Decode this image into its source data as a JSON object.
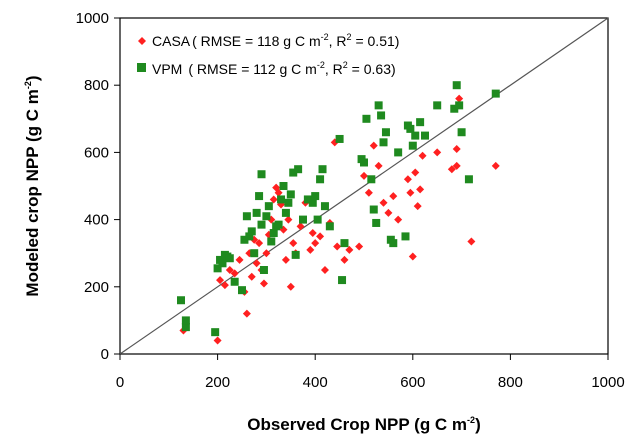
{
  "chart_data": {
    "type": "scatter",
    "xlabel": "Observed Crop NPP (g C m",
    "xlabel_sup": "-2",
    "xlabel_end": ")",
    "ylabel": "Modeled crop NPP (g C m",
    "ylabel_sup": "-2",
    "ylabel_end": ")",
    "xlim": [
      0,
      1000
    ],
    "ylim": [
      0,
      1000
    ],
    "xticks": [
      0,
      200,
      400,
      600,
      800,
      1000
    ],
    "yticks": [
      0,
      200,
      400,
      600,
      800,
      1000
    ],
    "grid": false,
    "legend_position": "top-left",
    "reference_line": {
      "from": [
        0,
        0
      ],
      "to": [
        1000,
        1000
      ],
      "color": "#555555"
    },
    "series": [
      {
        "name": "CASA",
        "legend_prefix": "CASA",
        "stat_rmse": "( RMSE = 118 g C m",
        "stat_mid": ", R",
        "stat_r2": " = 0.51)",
        "sup1": "-2",
        "sup2": "2",
        "marker": "diamond",
        "color": "#ff2020",
        "points": [
          [
            130,
            70
          ],
          [
            200,
            40
          ],
          [
            205,
            220
          ],
          [
            215,
            205
          ],
          [
            225,
            250
          ],
          [
            235,
            240
          ],
          [
            245,
            280
          ],
          [
            255,
            185
          ],
          [
            260,
            120
          ],
          [
            265,
            300
          ],
          [
            270,
            230
          ],
          [
            275,
            340
          ],
          [
            280,
            270
          ],
          [
            285,
            330
          ],
          [
            290,
            250
          ],
          [
            295,
            210
          ],
          [
            300,
            300
          ],
          [
            305,
            355
          ],
          [
            310,
            400
          ],
          [
            315,
            460
          ],
          [
            320,
            495
          ],
          [
            325,
            480
          ],
          [
            330,
            445
          ],
          [
            335,
            370
          ],
          [
            340,
            280
          ],
          [
            345,
            400
          ],
          [
            350,
            200
          ],
          [
            355,
            330
          ],
          [
            360,
            300
          ],
          [
            370,
            380
          ],
          [
            380,
            450
          ],
          [
            390,
            310
          ],
          [
            395,
            360
          ],
          [
            400,
            330
          ],
          [
            410,
            350
          ],
          [
            420,
            250
          ],
          [
            430,
            390
          ],
          [
            440,
            630
          ],
          [
            445,
            320
          ],
          [
            460,
            280
          ],
          [
            470,
            310
          ],
          [
            490,
            320
          ],
          [
            500,
            530
          ],
          [
            510,
            480
          ],
          [
            520,
            620
          ],
          [
            530,
            560
          ],
          [
            540,
            450
          ],
          [
            550,
            420
          ],
          [
            560,
            470
          ],
          [
            570,
            400
          ],
          [
            590,
            520
          ],
          [
            595,
            480
          ],
          [
            600,
            290
          ],
          [
            605,
            540
          ],
          [
            610,
            440
          ],
          [
            615,
            490
          ],
          [
            620,
            590
          ],
          [
            650,
            600
          ],
          [
            680,
            550
          ],
          [
            690,
            610
          ],
          [
            690,
            560
          ],
          [
            695,
            760
          ],
          [
            720,
            335
          ],
          [
            770,
            560
          ]
        ]
      },
      {
        "name": "VPM",
        "legend_prefix": "VPM",
        "stat_rmse": "( RMSE = 112 g C m",
        "stat_mid": ", R",
        "stat_r2": " = 0.63)",
        "sup1": "-2",
        "sup2": "2",
        "marker": "square",
        "color": "#1f8a1f",
        "points": [
          [
            125,
            160
          ],
          [
            135,
            80
          ],
          [
            135,
            100
          ],
          [
            195,
            65
          ],
          [
            200,
            255
          ],
          [
            205,
            280
          ],
          [
            210,
            270
          ],
          [
            215,
            295
          ],
          [
            220,
            290
          ],
          [
            225,
            285
          ],
          [
            235,
            215
          ],
          [
            250,
            190
          ],
          [
            255,
            340
          ],
          [
            260,
            410
          ],
          [
            265,
            350
          ],
          [
            270,
            365
          ],
          [
            275,
            300
          ],
          [
            280,
            420
          ],
          [
            285,
            470
          ],
          [
            290,
            535
          ],
          [
            290,
            385
          ],
          [
            295,
            250
          ],
          [
            300,
            410
          ],
          [
            305,
            440
          ],
          [
            310,
            335
          ],
          [
            315,
            360
          ],
          [
            320,
            380
          ],
          [
            325,
            385
          ],
          [
            330,
            460
          ],
          [
            335,
            500
          ],
          [
            340,
            420
          ],
          [
            345,
            450
          ],
          [
            350,
            475
          ],
          [
            355,
            540
          ],
          [
            360,
            295
          ],
          [
            365,
            550
          ],
          [
            375,
            400
          ],
          [
            385,
            460
          ],
          [
            395,
            450
          ],
          [
            400,
            470
          ],
          [
            405,
            400
          ],
          [
            410,
            520
          ],
          [
            415,
            550
          ],
          [
            420,
            440
          ],
          [
            430,
            380
          ],
          [
            450,
            640
          ],
          [
            455,
            220
          ],
          [
            460,
            330
          ],
          [
            495,
            580
          ],
          [
            500,
            570
          ],
          [
            505,
            700
          ],
          [
            515,
            520
          ],
          [
            520,
            430
          ],
          [
            525,
            390
          ],
          [
            530,
            740
          ],
          [
            535,
            710
          ],
          [
            540,
            630
          ],
          [
            545,
            660
          ],
          [
            555,
            340
          ],
          [
            560,
            330
          ],
          [
            570,
            600
          ],
          [
            585,
            350
          ],
          [
            590,
            680
          ],
          [
            595,
            670
          ],
          [
            600,
            620
          ],
          [
            605,
            650
          ],
          [
            615,
            690
          ],
          [
            625,
            650
          ],
          [
            650,
            740
          ],
          [
            685,
            730
          ],
          [
            690,
            800
          ],
          [
            695,
            740
          ],
          [
            700,
            660
          ],
          [
            715,
            520
          ],
          [
            770,
            775
          ]
        ]
      }
    ]
  }
}
